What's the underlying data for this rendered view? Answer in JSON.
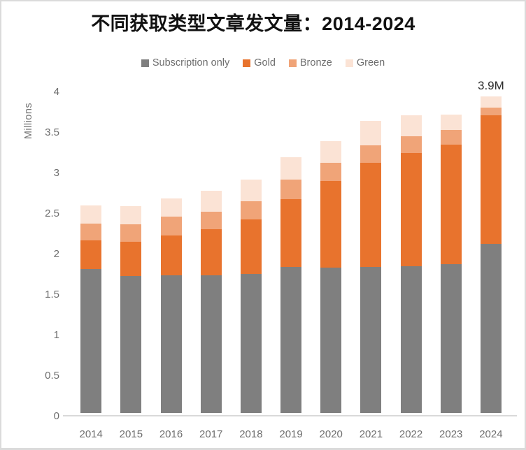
{
  "title": "不同获取类型文章发文量：2014-2024",
  "y_axis": {
    "label": "Millions"
  },
  "annotation": {
    "text": "3.9M",
    "category": "2024"
  },
  "colors": {
    "subscription_gray": "#7F7F7F",
    "gold_orange": "#E8732D",
    "bronze_light_orange": "#F0A478",
    "green_pale_peach": "#FBE3D5",
    "axis_line": "#D9D9D9",
    "axis_text": "#6E6E6E",
    "title_text": "#111111"
  },
  "chart_data": {
    "type": "bar",
    "stacked": true,
    "title": "不同获取类型文章发文量：2014-2024",
    "categories": [
      "2014",
      "2015",
      "2016",
      "2017",
      "2018",
      "2019",
      "2020",
      "2021",
      "2022",
      "2023",
      "2024"
    ],
    "series": [
      {
        "name": "Subscription only",
        "color": "#7F7F7F",
        "values": [
          1.78,
          1.69,
          1.7,
          1.7,
          1.72,
          1.8,
          1.79,
          1.8,
          1.81,
          1.84,
          2.09
        ]
      },
      {
        "name": "Gold",
        "color": "#E8732D",
        "values": [
          0.35,
          0.42,
          0.49,
          0.57,
          0.67,
          0.84,
          1.07,
          1.29,
          1.4,
          1.47,
          1.58
        ]
      },
      {
        "name": "Bronze",
        "color": "#F0A478",
        "values": [
          0.21,
          0.22,
          0.23,
          0.21,
          0.22,
          0.24,
          0.23,
          0.21,
          0.2,
          0.18,
          0.1
        ]
      },
      {
        "name": "Green",
        "color": "#FBE3D5",
        "values": [
          0.22,
          0.22,
          0.23,
          0.26,
          0.27,
          0.28,
          0.26,
          0.3,
          0.26,
          0.19,
          0.14
        ]
      }
    ],
    "totals": [
      2.56,
      2.55,
      2.65,
      2.74,
      2.88,
      3.16,
      3.35,
      3.6,
      3.67,
      3.68,
      3.91
    ],
    "ylabel": "Millions",
    "ylim": [
      0,
      4
    ],
    "yticks": [
      0,
      0.5,
      1,
      1.5,
      2,
      2.5,
      3,
      3.5,
      4
    ],
    "legend_position": "top",
    "grid": false,
    "annotations": [
      {
        "category": "2024",
        "text": "3.9M"
      }
    ]
  }
}
